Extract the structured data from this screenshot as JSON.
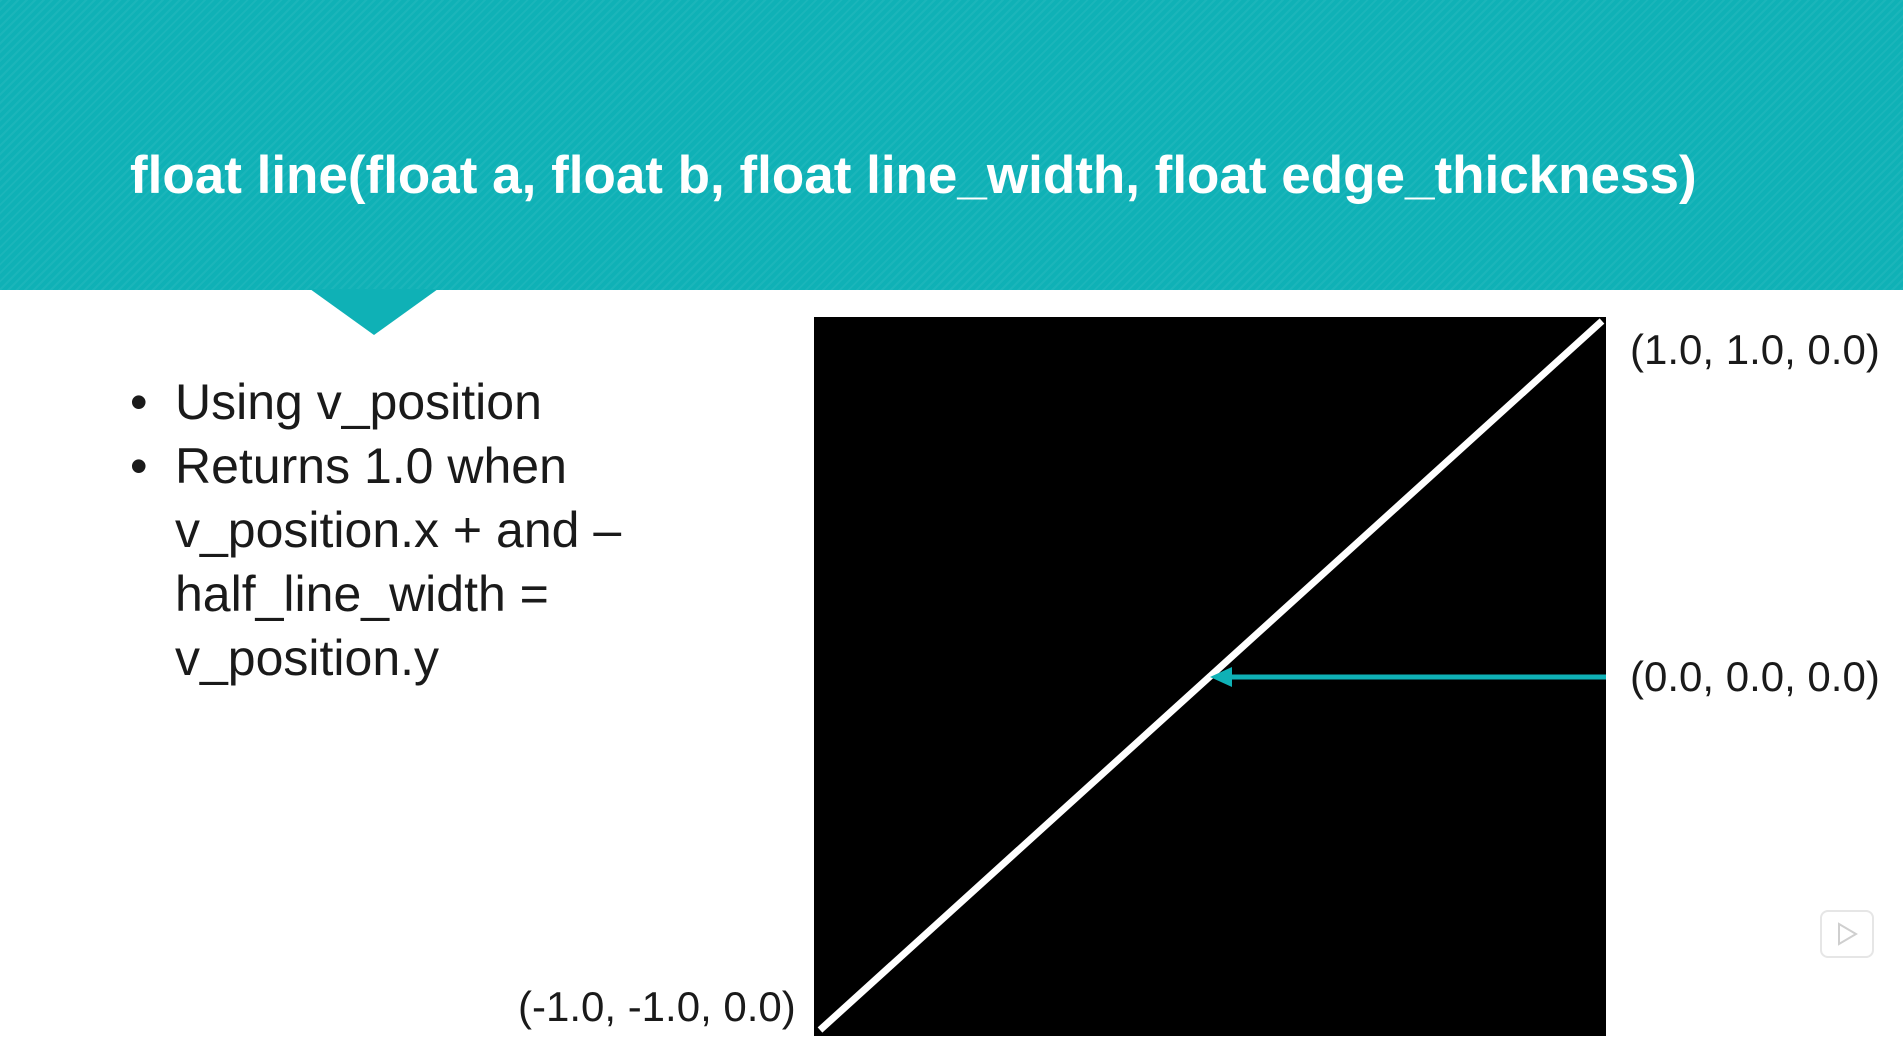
{
  "slide": {
    "title": "float line(float a, float b, float line_width, float edge_thickness)",
    "bullets": [
      {
        "lines": [
          "Using v_position"
        ]
      },
      {
        "lines": [
          "Returns 1.0 when",
          "v_position.x + and –",
          "half_line_width =",
          "v_position.y"
        ]
      }
    ],
    "bullet_symbol": "•",
    "labels": {
      "top_right": "(1.0, 1.0, 0.0)",
      "middle": "(0.0, 0.0, 0.0)",
      "bottom_left": "(-1.0, -1.0, 0.0)"
    }
  },
  "colors": {
    "banner": "#0fb1b6",
    "diagram_background": "#000000",
    "diagonal_line": "#ffffff",
    "arrow": "#0fb1b6"
  },
  "icons": {
    "player": "play-icon"
  }
}
